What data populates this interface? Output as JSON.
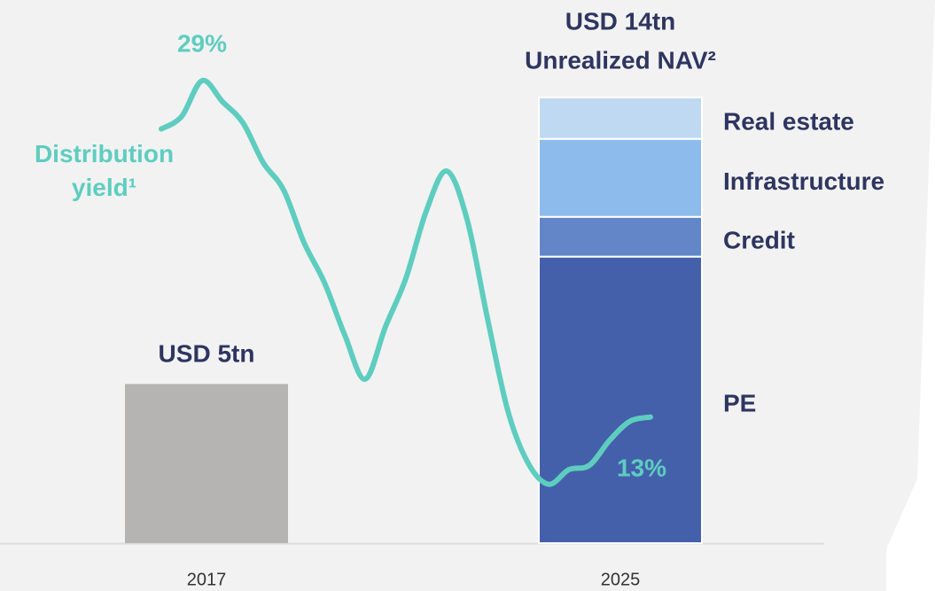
{
  "chart_data": {
    "type": "bar",
    "categories": [
      "2017",
      "2025"
    ],
    "totals": [
      5,
      14
    ],
    "total_labels": [
      "USD 5tn",
      "USD 14tn"
    ],
    "total_color": "#b5b4b2",
    "subtitle": "Unrealized NAV²",
    "ylim": [
      0,
      14
    ],
    "series": [
      {
        "name": "PE",
        "color": "#4460ab",
        "values": [
          null,
          9.0
        ]
      },
      {
        "name": "Credit",
        "color": "#6286c8",
        "values": [
          null,
          1.25
        ]
      },
      {
        "name": "Infrastructure",
        "color": "#8dbbec",
        "values": [
          null,
          2.45
        ]
      },
      {
        "name": "Real estate",
        "color": "#c0d9f2",
        "values": [
          null,
          1.3
        ]
      }
    ],
    "line": {
      "type": "line",
      "name": "Distribution yield¹",
      "color": "#5ecdbf",
      "y2lim": [
        7,
        28.2
      ],
      "values": [
        26.7,
        27.3,
        29,
        28.0,
        27.0,
        25.1,
        23.8,
        21.3,
        19.4,
        16.9,
        14.8,
        17.3,
        19.6,
        22.8,
        24.7,
        22.4,
        17.7,
        13.3,
        10.8,
        9.8,
        10.5,
        10.7,
        11.9,
        12.8,
        13
      ],
      "value_labels": [
        null,
        null,
        "29%",
        null,
        null,
        null,
        null,
        null,
        null,
        null,
        null,
        null,
        null,
        null,
        null,
        null,
        null,
        null,
        null,
        null,
        null,
        null,
        null,
        null,
        "13%"
      ]
    }
  }
}
